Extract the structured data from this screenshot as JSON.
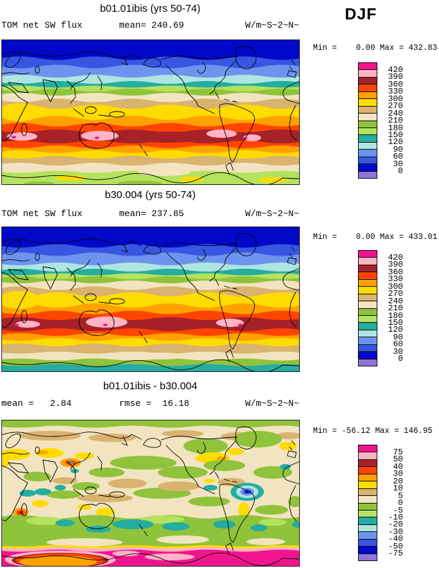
{
  "figure": {
    "season_label": "DJF"
  },
  "palette": {
    "magenta": "#F2148E",
    "lightpink": "#FFB3C6",
    "darkred": "#A62228",
    "orangered": "#FF4500",
    "orange": "#FFA200",
    "gold": "#FFDC00",
    "tan": "#D9B36F",
    "beige": "#F2E4C0",
    "olive": "#90C33C",
    "lightgreen": "#B4E25E",
    "teal": "#24ADA0",
    "palecyan": "#AEE5E0",
    "cornflower": "#6C94EE",
    "royal": "#3756E2",
    "darkblue": "#0009C8",
    "purple": "#9173D9",
    "coast": "#000000",
    "frame": "#222222"
  },
  "colorbar_colors": [
    "magenta",
    "lightpink",
    "darkred",
    "orangered",
    "orange",
    "gold",
    "tan",
    "beige",
    "olive",
    "lightgreen",
    "teal",
    "palecyan",
    "cornflower",
    "royal",
    "darkblue",
    "purple"
  ],
  "panels": [
    {
      "title": "b01.01ibis (yrs 50-74)",
      "field_label": "TOM net SW flux",
      "mean_label": "mean= 240.69",
      "units": "W/m~S~2~N~",
      "minmax": "Min =    0.00 Max = 432.83",
      "colorbar_labels": [
        "420",
        "390",
        "360",
        "330",
        "300",
        "270",
        "240",
        "210",
        "180",
        "150",
        "120",
        "90",
        "60",
        "30",
        "0"
      ]
    },
    {
      "title": "b30.004 (yrs 50-74)",
      "field_label": "TOM net SW flux",
      "mean_label": "mean= 237.85",
      "units": "W/m~S~2~N~",
      "minmax": "Min =    0.00 Max = 433.01",
      "colorbar_labels": [
        "420",
        "390",
        "360",
        "330",
        "300",
        "270",
        "240",
        "210",
        "180",
        "150",
        "120",
        "90",
        "60",
        "30",
        "0"
      ]
    },
    {
      "title": "b01.01ibis - b30.004",
      "mean_label": "mean =   2.84",
      "rmse_label": "rmse =  16.18",
      "units": "W/m~S~2~N~",
      "minmax": "Min = -56.12 Max = 146.95",
      "colorbar_labels": [
        "75",
        "50",
        "40",
        "30",
        "20",
        "10",
        "5",
        "0",
        "-5",
        "-10",
        "-20",
        "-30",
        "-40",
        "-50",
        "-75"
      ]
    }
  ],
  "chart_data": [
    {
      "type": "heatmap",
      "title": "b01.01ibis (yrs 50-74)",
      "field": "TOM net SW flux",
      "season": "DJF",
      "units": "W/m^2",
      "mean": 240.69,
      "min": 0.0,
      "max": 432.83,
      "contour_levels": [
        0,
        30,
        60,
        90,
        120,
        150,
        180,
        210,
        240,
        270,
        300,
        330,
        360,
        390,
        420
      ],
      "projection": "global lat-lon, Pacific-centered",
      "legend_position": "right",
      "description": "Dark blue Arctic band grading through cyan/green/tan to orange; dark-red belt with pink maxima near 20-40S; green Antarctic band with yellow patches"
    },
    {
      "type": "heatmap",
      "title": "b30.004 (yrs 50-74)",
      "field": "TOM net SW flux",
      "season": "DJF",
      "units": "W/m^2",
      "mean": 237.85,
      "min": 0.0,
      "max": 433.01,
      "contour_levels": [
        0,
        30,
        60,
        90,
        120,
        150,
        180,
        210,
        240,
        270,
        300,
        330,
        360,
        390,
        420
      ],
      "projection": "global lat-lon, Pacific-centered",
      "legend_position": "right",
      "description": "Same pattern as b01.01ibis but Antarctic edge band is teal (120-150) instead of green"
    },
    {
      "type": "heatmap",
      "title": "b01.01ibis - b30.004",
      "field": "TOM net SW flux difference",
      "season": "DJF",
      "units": "W/m^2",
      "mean": 2.84,
      "rmse": 16.18,
      "min": -56.12,
      "max": 146.95,
      "contour_levels": [
        -75,
        -50,
        -40,
        -30,
        -20,
        -10,
        -5,
        0,
        5,
        10,
        20,
        30,
        40,
        50,
        75
      ],
      "projection": "global lat-lon, Pacific-centered",
      "legend_position": "right",
      "description": "Mostly beige/green near zero; yellow-orange positive patches over Eurasia/Canada; red bullseyes over Tibet and South Africa; blue negative bullseye over northern South America; strong magenta/orange positive band over the Southern Ocean and Antarctica"
    }
  ]
}
